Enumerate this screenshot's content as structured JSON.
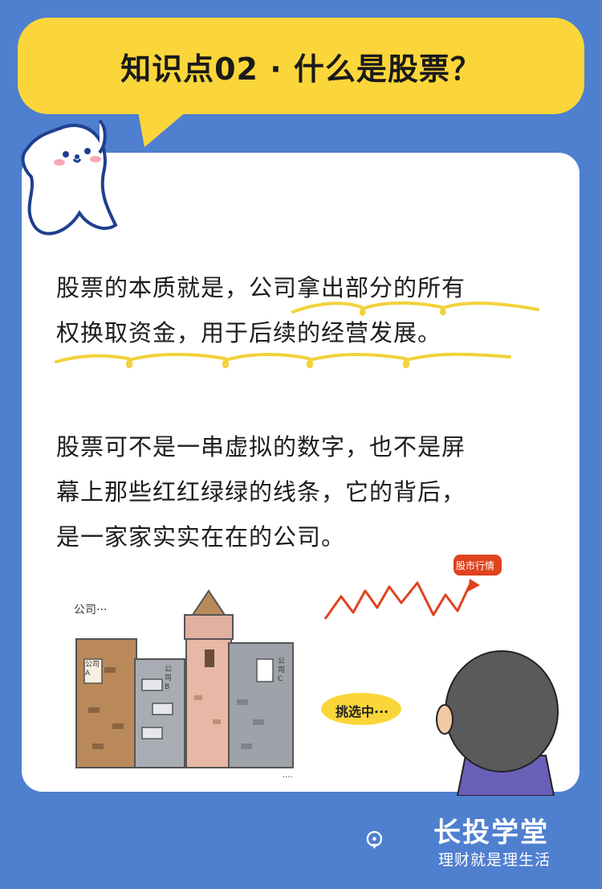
{
  "header": {
    "title": "知识点02 · 什么是股票？"
  },
  "content": {
    "paragraph1_lines": [
      "股票的本质就是，公司拿出部分的所有",
      "权换取资金，用于后续的经营发展。"
    ],
    "paragraph2_lines": [
      "股票可不是一串虚拟的数字，也不是屏",
      "幕上那些红红绿绿的线条，它的背后，",
      "是一家家实实在在的公司。"
    ]
  },
  "illustration": {
    "companies_caption": "公司···",
    "building_a_sign": "公司A",
    "building_b_sign": "公司B",
    "building_c_sign": "公司C",
    "stock_tag": "股市行情",
    "picking_bubble": "挑选中···",
    "trailing_dots": "····"
  },
  "brand": {
    "name": "长投学堂",
    "slogan": "理财就是理生活"
  },
  "colors": {
    "background": "#4f7fcf",
    "title_bubble": "#fbd63a",
    "card": "#ffffff",
    "highlight_squiggle": "#f2d23a",
    "chart_line": "#e0421e"
  }
}
